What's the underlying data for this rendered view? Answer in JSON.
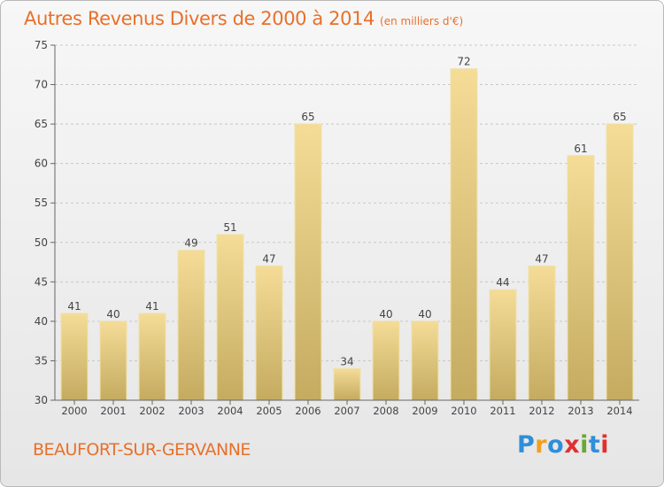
{
  "header": {
    "title": "Autres Revenus Divers de 2000 à 2014",
    "unit": "(en milliers d'€)"
  },
  "footer": {
    "commune": "BEAUFORT-SUR-GERVANNE",
    "logo_text": "Proxiti",
    "logo_colors": [
      "#2f8fd8",
      "#f0a020",
      "#2f8fd8",
      "#e03030",
      "#6aa832",
      "#2f8fd8",
      "#e03030"
    ]
  },
  "colors": {
    "title": "#e8702a",
    "bar_light": "#f5dc97",
    "bar_dark": "#c4ab60",
    "axis": "#666666",
    "grid": "#c8c8c8"
  },
  "chart_data": {
    "type": "bar",
    "categories": [
      "2000",
      "2001",
      "2002",
      "2003",
      "2004",
      "2005",
      "2006",
      "2007",
      "2008",
      "2009",
      "2010",
      "2011",
      "2012",
      "2013",
      "2014"
    ],
    "values": [
      41,
      40,
      41,
      49,
      51,
      47,
      65,
      34,
      40,
      40,
      72,
      44,
      47,
      61,
      65
    ],
    "ylim": [
      30,
      75
    ],
    "yticks": [
      30,
      35,
      40,
      45,
      50,
      55,
      60,
      65,
      70,
      75
    ],
    "grid": "horizontal dashed",
    "legend": "none"
  }
}
